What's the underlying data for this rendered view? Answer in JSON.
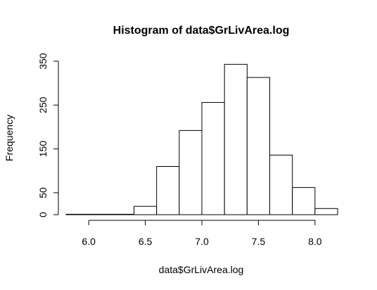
{
  "chart_data": {
    "type": "bar",
    "title": "Histogram of data$GrLivArea.log",
    "xlabel": "data$GrLivArea.log",
    "ylabel": "Frequency",
    "bin_edges": [
      5.8,
      6.0,
      6.2,
      6.4,
      6.6,
      6.8,
      7.0,
      7.2,
      7.4,
      7.6,
      7.8,
      8.0,
      8.2
    ],
    "values": [
      1,
      1,
      1,
      19,
      110,
      192,
      256,
      343,
      313,
      136,
      62,
      14
    ],
    "xlim": [
      5.8,
      8.2
    ],
    "ylim": [
      0,
      350
    ],
    "x_ticks": [
      "6.0",
      "6.5",
      "7.0",
      "7.5",
      "8.0"
    ],
    "y_ticks": [
      "0",
      "50",
      "150",
      "250",
      "350"
    ],
    "grid": false,
    "legend": "none"
  }
}
